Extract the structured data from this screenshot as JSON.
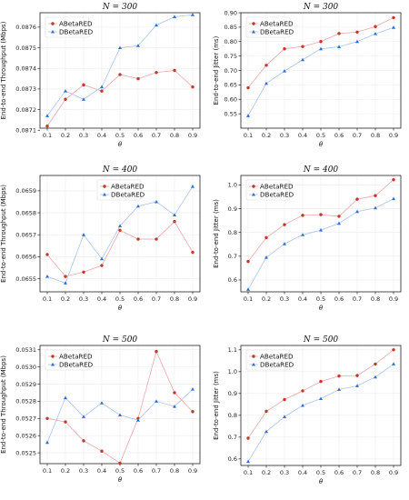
{
  "colors": {
    "series_a": "#c0392b",
    "series_a_line": "#e8a8a8",
    "series_d": "#2e6fd6",
    "series_d_line": "#a9c4ee",
    "grid": "#ececec"
  },
  "chart_data": [
    {
      "type": "line",
      "title": "N = 300",
      "xlabel": "θ",
      "ylabel": "End-to-end Throughput (Mbps)",
      "x": [
        0.1,
        0.2,
        0.3,
        0.4,
        0.5,
        0.6,
        0.7,
        0.8,
        0.9
      ],
      "x_ticks": [
        "0.1",
        "0.2",
        "0.3",
        "0.4",
        "0.5",
        "0.6",
        "0.7",
        "0.8",
        "0.9"
      ],
      "ylim": [
        0.08711,
        0.08767
      ],
      "y_ticks": [
        0.0871,
        0.0872,
        0.0873,
        0.0874,
        0.0875,
        0.0876
      ],
      "y_tick_labels": [
        "0.0871",
        "0.0872",
        "0.0873",
        "0.0874",
        "0.0875",
        "0.0876"
      ],
      "legend": "top-left",
      "grid": true,
      "series": [
        {
          "name": "ABetaRED",
          "marker": "circle",
          "values": [
            0.08712,
            0.08725,
            0.08732,
            0.08729,
            0.08737,
            0.08735,
            0.08738,
            0.08739,
            0.08731
          ]
        },
        {
          "name": "DBetaRED",
          "marker": "triangle",
          "values": [
            0.08717,
            0.08729,
            0.08725,
            0.08731,
            0.0875,
            0.08751,
            0.08761,
            0.08765,
            0.08766
          ]
        }
      ]
    },
    {
      "type": "line",
      "title": "N = 300",
      "xlabel": "θ",
      "ylabel": "End-to-end Jitter (ms)",
      "x": [
        0.1,
        0.2,
        0.3,
        0.4,
        0.5,
        0.6,
        0.7,
        0.8,
        0.9
      ],
      "x_ticks": [
        "0.1",
        "0.2",
        "0.3",
        "0.4",
        "0.5",
        "0.6",
        "0.7",
        "0.8",
        "0.9"
      ],
      "ylim": [
        0.5,
        0.9
      ],
      "y_ticks": [
        0.55,
        0.6,
        0.65,
        0.7,
        0.75,
        0.8,
        0.85,
        0.9
      ],
      "y_tick_labels": [
        "0.55",
        "0.60",
        "0.65",
        "0.70",
        "0.75",
        "0.80",
        "0.85",
        "0.90"
      ],
      "legend": "top-left",
      "grid": true,
      "series": [
        {
          "name": "ABetaRED",
          "marker": "circle",
          "values": [
            0.64,
            0.718,
            0.775,
            0.783,
            0.8,
            0.828,
            0.833,
            0.852,
            0.883
          ]
        },
        {
          "name": "DBetaRED",
          "marker": "triangle",
          "values": [
            0.543,
            0.655,
            0.698,
            0.737,
            0.775,
            0.782,
            0.8,
            0.827,
            0.849
          ]
        }
      ]
    },
    {
      "type": "line",
      "title": "N = 400",
      "xlabel": "θ",
      "ylabel": "End-to-end Throughput (Mbps)",
      "x": [
        0.1,
        0.2,
        0.3,
        0.4,
        0.5,
        0.6,
        0.7,
        0.8,
        0.9
      ],
      "x_ticks": [
        "0.1",
        "0.2",
        "0.3",
        "0.4",
        "0.5",
        "0.6",
        "0.7",
        "0.8",
        "0.9"
      ],
      "ylim": [
        0.06544,
        0.06597
      ],
      "y_ticks": [
        0.0655,
        0.0656,
        0.0657,
        0.0658,
        0.0659
      ],
      "y_tick_labels": [
        "0.0655",
        "0.0656",
        "0.0657",
        "0.0658",
        "0.0659"
      ],
      "legend": "top-center",
      "grid": true,
      "series": [
        {
          "name": "ABetaRED",
          "marker": "circle",
          "values": [
            0.06561,
            0.06551,
            0.06553,
            0.06556,
            0.06572,
            0.06568,
            0.06568,
            0.06576,
            0.06562
          ]
        },
        {
          "name": "DBetaRED",
          "marker": "triangle",
          "values": [
            0.06551,
            0.06548,
            0.0657,
            0.06559,
            0.06574,
            0.06583,
            0.06585,
            0.06579,
            0.06592
          ]
        }
      ]
    },
    {
      "type": "line",
      "title": "N = 400",
      "xlabel": "θ",
      "ylabel": "End-to-end Jitter (ms)",
      "x": [
        0.1,
        0.2,
        0.3,
        0.4,
        0.5,
        0.6,
        0.7,
        0.8,
        0.9
      ],
      "x_ticks": [
        "0.1",
        "0.2",
        "0.3",
        "0.4",
        "0.5",
        "0.6",
        "0.7",
        "0.8",
        "0.9"
      ],
      "ylim": [
        0.55,
        1.04
      ],
      "y_ticks": [
        0.6,
        0.7,
        0.8,
        0.9,
        1.0
      ],
      "y_tick_labels": [
        "0.6",
        "0.7",
        "0.8",
        "0.9",
        "1.0"
      ],
      "legend": "top-left",
      "grid": true,
      "series": [
        {
          "name": "ABetaRED",
          "marker": "circle",
          "values": [
            0.678,
            0.778,
            0.833,
            0.872,
            0.875,
            0.868,
            0.94,
            0.955,
            1.022
          ]
        },
        {
          "name": "DBetaRED",
          "marker": "triangle",
          "values": [
            0.56,
            0.695,
            0.752,
            0.79,
            0.81,
            0.838,
            0.888,
            0.903,
            0.942
          ]
        }
      ]
    },
    {
      "type": "line",
      "title": "N = 500",
      "xlabel": "θ",
      "ylabel": "End-to-end Throughput (Mbps)",
      "x": [
        0.1,
        0.2,
        0.3,
        0.4,
        0.5,
        0.6,
        0.7,
        0.8,
        0.9
      ],
      "x_ticks": [
        "0.1",
        "0.2",
        "0.3",
        "0.4",
        "0.5",
        "0.6",
        "0.7",
        "0.8",
        "0.9"
      ],
      "ylim": [
        0.052437,
        0.053125
      ],
      "y_ticks": [
        0.0525,
        0.0526,
        0.0527,
        0.0528,
        0.0529,
        0.053,
        0.0531
      ],
      "y_tick_labels": [
        "0.0525",
        "0.0526",
        "0.0527",
        "0.0528",
        "0.0529",
        "0.0530",
        "0.0531"
      ],
      "legend": "top-left",
      "grid": true,
      "series": [
        {
          "name": "ABetaRED",
          "marker": "circle",
          "values": [
            0.0527,
            0.05268,
            0.05257,
            0.05251,
            0.05244,
            0.0527,
            0.05309,
            0.05285,
            0.05274
          ]
        },
        {
          "name": "DBetaRED",
          "marker": "triangle",
          "values": [
            0.05256,
            0.05282,
            0.05271,
            0.05279,
            0.05272,
            0.05269,
            0.0528,
            0.05277,
            0.05287
          ]
        }
      ]
    },
    {
      "type": "line",
      "title": "N = 500",
      "xlabel": "θ",
      "ylabel": "End-to-end Jitter (ms)",
      "x": [
        0.1,
        0.2,
        0.3,
        0.4,
        0.5,
        0.6,
        0.7,
        0.8,
        0.9
      ],
      "x_ticks": [
        "0.1",
        "0.2",
        "0.3",
        "0.4",
        "0.5",
        "0.6",
        "0.7",
        "0.8",
        "0.9"
      ],
      "ylim": [
        0.57,
        1.12
      ],
      "y_ticks": [
        0.6,
        0.7,
        0.8,
        0.9,
        1.0,
        1.1
      ],
      "y_tick_labels": [
        "0.6",
        "0.7",
        "0.8",
        "0.9",
        "1.0",
        "1.1"
      ],
      "legend": "top-left",
      "grid": true,
      "series": [
        {
          "name": "ABetaRED",
          "marker": "circle",
          "values": [
            0.695,
            0.818,
            0.872,
            0.912,
            0.955,
            0.98,
            0.982,
            1.035,
            1.1
          ]
        },
        {
          "name": "DBetaRED",
          "marker": "triangle",
          "values": [
            0.588,
            0.725,
            0.793,
            0.845,
            0.876,
            0.918,
            0.935,
            0.975,
            1.035
          ]
        }
      ]
    }
  ]
}
